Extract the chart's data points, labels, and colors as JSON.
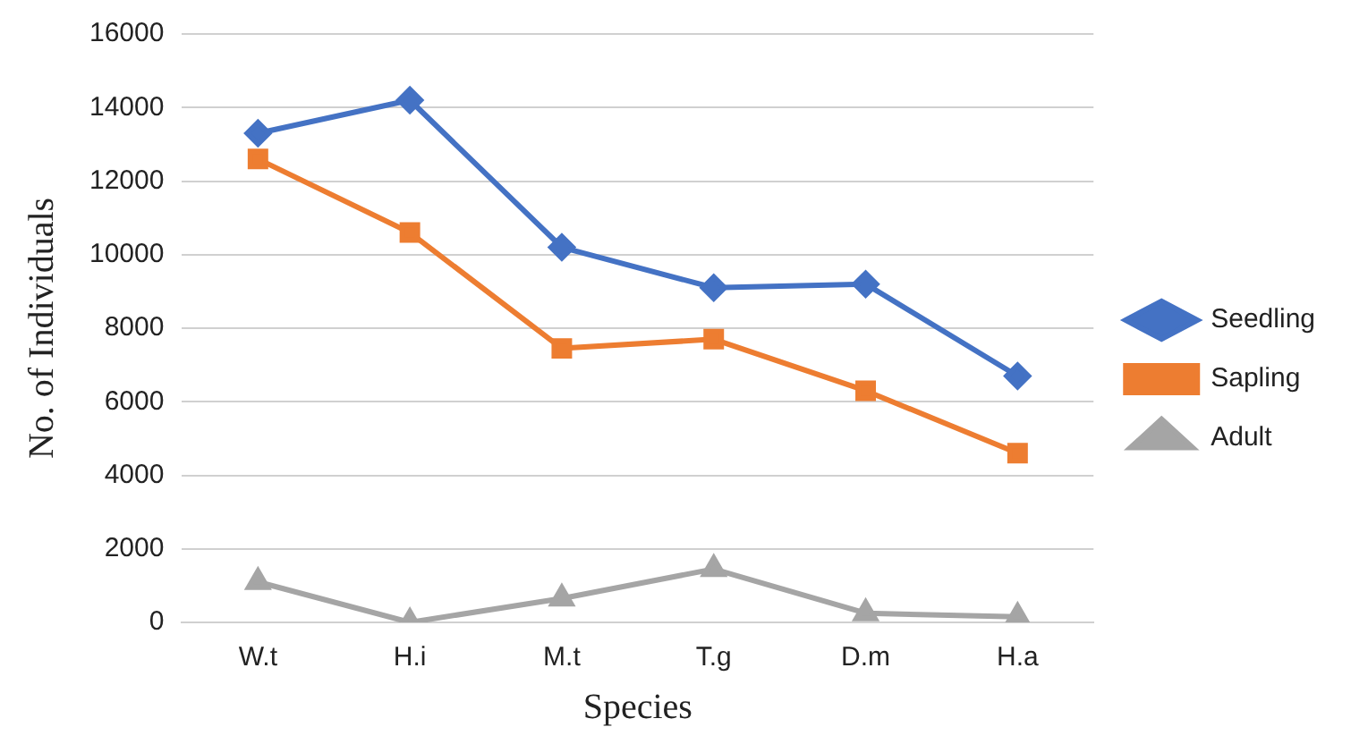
{
  "chart_data": {
    "type": "line",
    "xlabel": "Species",
    "ylabel": "No. of Individuals",
    "categories": [
      "W.t",
      "H.i",
      "M.t",
      "T.g",
      "D.m",
      "H.a"
    ],
    "series": [
      {
        "name": "Seedling",
        "color": "#4472c4",
        "marker": "diamond",
        "values": [
          13300,
          14200,
          10200,
          9100,
          9200,
          6700
        ]
      },
      {
        "name": "Sapling",
        "color": "#ed7d31",
        "marker": "square",
        "values": [
          12600,
          10600,
          7450,
          7700,
          6300,
          4600
        ]
      },
      {
        "name": "Adult",
        "color": "#a5a5a5",
        "marker": "triangle",
        "values": [
          1100,
          0,
          650,
          1450,
          250,
          150
        ]
      }
    ],
    "ylim": [
      0,
      16000
    ],
    "yticks": [
      0,
      2000,
      4000,
      6000,
      8000,
      10000,
      12000,
      14000,
      16000
    ],
    "grid": "y",
    "legend": "right"
  }
}
